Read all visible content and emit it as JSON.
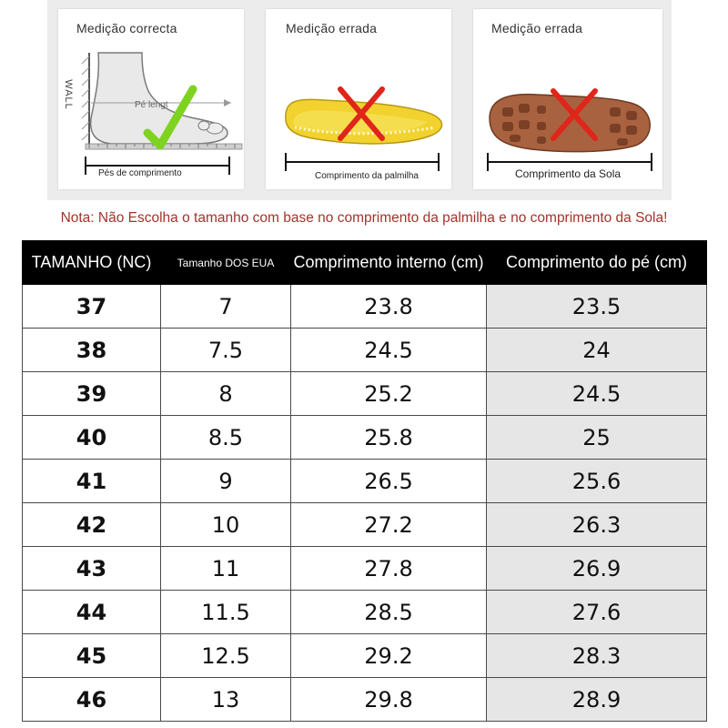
{
  "panels": [
    {
      "title": "Medição correcta",
      "wall_label": "WALL",
      "ruler_label": "Pé lengt",
      "caption": "Pés de comprimento"
    },
    {
      "title": "Medição errada",
      "caption": "Comprimento da palmilha"
    },
    {
      "title": "Medição errada",
      "caption": "Comprimento da Sola"
    }
  ],
  "note": "Nota: Não Escolha o tamanho com base no comprimento da palmilha e no comprimento da Sola!",
  "table": {
    "headers": [
      "TAMANHO (NC)",
      "Tamanho DOS EUA",
      "Comprimento interno (cm)",
      "Comprimento do pé (cm)"
    ],
    "rows": [
      [
        "37",
        "7",
        "23.8",
        "23.5"
      ],
      [
        "38",
        "7.5",
        "24.5",
        "24"
      ],
      [
        "39",
        "8",
        "25.2",
        "24.5"
      ],
      [
        "40",
        "8.5",
        "25.8",
        "25"
      ],
      [
        "41",
        "9",
        "26.5",
        "25.6"
      ],
      [
        "42",
        "10",
        "27.2",
        "26.3"
      ],
      [
        "43",
        "11",
        "27.8",
        "26.9"
      ],
      [
        "44",
        "11.5",
        "28.5",
        "27.6"
      ],
      [
        "45",
        "12.5",
        "29.2",
        "28.3"
      ],
      [
        "46",
        "13",
        "29.8",
        "28.9"
      ]
    ]
  },
  "colors": {
    "note": "#a3332b",
    "check": "#7ed321",
    "cross": "#e0251b",
    "insole": "#f2d22e",
    "sole": "#a8623f",
    "header_bg": "#000000",
    "shaded_column": "#e6e6e6"
  },
  "icons": [
    "foot-measure-illustration",
    "check-icon",
    "insole-illustration",
    "sole-illustration",
    "cross-icon"
  ]
}
